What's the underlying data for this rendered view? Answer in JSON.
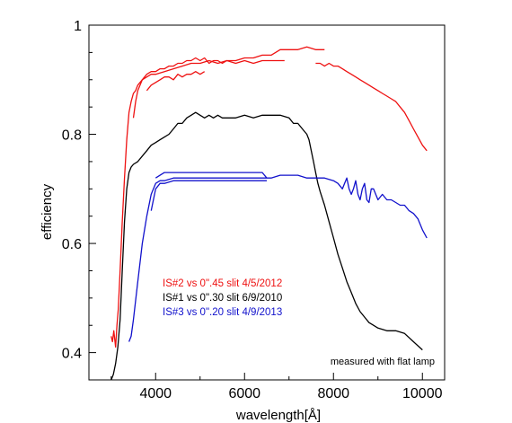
{
  "chart_data": {
    "type": "line",
    "title": "",
    "xlabel": "wavelength[Å]",
    "ylabel": "efficiency",
    "xlim": [
      2500,
      10500
    ],
    "ylim": [
      0.35,
      1.0
    ],
    "xticks": [
      4000,
      6000,
      8000,
      10000
    ],
    "xtick_labels": [
      "4000",
      "6000",
      "8000",
      "10000"
    ],
    "yticks": [
      0.4,
      0.6,
      0.8,
      1.0
    ],
    "ytick_labels": [
      "0.4",
      "0.6",
      "0.8",
      "1"
    ],
    "grid": false,
    "annotation": "measured with flat lamp",
    "legend": [
      {
        "label": "IS#2 vs 0\".45 slit  4/5/2012",
        "color": "#ee1111"
      },
      {
        "label": "IS#1 vs 0\".30 slit  6/9/2010",
        "color": "#000000"
      },
      {
        "label": "IS#3 vs 0\".20 slit  4/9/2013",
        "color": "#1111cc"
      }
    ],
    "series": [
      {
        "name": "IS#2 vs 0\".45 slit  4/5/2012",
        "color": "#ee1111",
        "segments": [
          [
            [
              3000,
              0.43
            ],
            [
              3030,
              0.42
            ],
            [
              3060,
              0.44
            ],
            [
              3100,
              0.41
            ],
            [
              3130,
              0.45
            ],
            [
              3160,
              0.48
            ],
            [
              3200,
              0.55
            ],
            [
              3250,
              0.64
            ],
            [
              3300,
              0.72
            ],
            [
              3350,
              0.79
            ],
            [
              3400,
              0.84
            ],
            [
              3450,
              0.86
            ],
            [
              3500,
              0.875
            ],
            [
              3550,
              0.88
            ],
            [
              3600,
              0.89
            ],
            [
              3700,
              0.9
            ],
            [
              3800,
              0.91
            ],
            [
              3900,
              0.915
            ],
            [
              4000,
              0.915
            ],
            [
              4100,
              0.92
            ],
            [
              4200,
              0.92
            ],
            [
              4300,
              0.925
            ],
            [
              4400,
              0.925
            ],
            [
              4500,
              0.93
            ],
            [
              4600,
              0.93
            ],
            [
              4700,
              0.935
            ],
            [
              4800,
              0.935
            ],
            [
              4900,
              0.94
            ],
            [
              5000,
              0.935
            ],
            [
              5100,
              0.94
            ],
            [
              5200,
              0.93
            ],
            [
              5300,
              0.935
            ],
            [
              5400,
              0.935
            ],
            [
              5500,
              0.93
            ],
            [
              5600,
              0.935
            ],
            [
              5800,
              0.935
            ],
            [
              6000,
              0.94
            ],
            [
              6200,
              0.94
            ],
            [
              6400,
              0.945
            ],
            [
              6600,
              0.945
            ],
            [
              6800,
              0.955
            ],
            [
              7000,
              0.955
            ],
            [
              7200,
              0.955
            ],
            [
              7400,
              0.96
            ],
            [
              7600,
              0.955
            ],
            [
              7800,
              0.955
            ]
          ],
          [
            [
              3500,
              0.83
            ],
            [
              3550,
              0.86
            ],
            [
              3600,
              0.88
            ],
            [
              3700,
              0.9
            ],
            [
              3800,
              0.905
            ],
            [
              3900,
              0.91
            ],
            [
              4000,
              0.91
            ],
            [
              4200,
              0.915
            ],
            [
              4400,
              0.92
            ],
            [
              4600,
              0.925
            ],
            [
              4800,
              0.93
            ],
            [
              5000,
              0.93
            ],
            [
              5200,
              0.935
            ],
            [
              5400,
              0.93
            ],
            [
              5600,
              0.935
            ],
            [
              5800,
              0.93
            ],
            [
              6000,
              0.935
            ],
            [
              6200,
              0.93
            ],
            [
              6400,
              0.935
            ],
            [
              6600,
              0.935
            ],
            [
              6800,
              0.935
            ],
            [
              6900,
              0.935
            ]
          ],
          [
            [
              3800,
              0.88
            ],
            [
              3900,
              0.89
            ],
            [
              4000,
              0.895
            ],
            [
              4100,
              0.9
            ],
            [
              4200,
              0.905
            ],
            [
              4300,
              0.905
            ],
            [
              4400,
              0.9
            ],
            [
              4500,
              0.91
            ],
            [
              4600,
              0.905
            ],
            [
              4700,
              0.91
            ],
            [
              4800,
              0.91
            ],
            [
              4900,
              0.915
            ],
            [
              5000,
              0.91
            ],
            [
              5100,
              0.915
            ]
          ],
          [
            [
              7600,
              0.93
            ],
            [
              7700,
              0.93
            ],
            [
              7800,
              0.925
            ],
            [
              7900,
              0.93
            ],
            [
              8000,
              0.925
            ],
            [
              8100,
              0.925
            ],
            [
              8200,
              0.92
            ],
            [
              8300,
              0.915
            ],
            [
              8400,
              0.91
            ],
            [
              8500,
              0.905
            ],
            [
              8600,
              0.9
            ],
            [
              8700,
              0.895
            ],
            [
              8800,
              0.89
            ],
            [
              8900,
              0.885
            ],
            [
              9000,
              0.88
            ],
            [
              9100,
              0.875
            ],
            [
              9200,
              0.87
            ],
            [
              9300,
              0.865
            ],
            [
              9400,
              0.86
            ],
            [
              9500,
              0.85
            ],
            [
              9600,
              0.84
            ],
            [
              9700,
              0.825
            ],
            [
              9800,
              0.81
            ],
            [
              9900,
              0.795
            ],
            [
              10000,
              0.78
            ],
            [
              10100,
              0.77
            ]
          ]
        ]
      },
      {
        "name": "IS#1 vs 0\".30 slit  6/9/2010",
        "color": "#000000",
        "segments": [
          [
            [
              3000,
              0.35
            ],
            [
              3050,
              0.36
            ],
            [
              3100,
              0.38
            ],
            [
              3150,
              0.41
            ],
            [
              3200,
              0.46
            ],
            [
              3250,
              0.55
            ],
            [
              3300,
              0.64
            ],
            [
              3350,
              0.7
            ],
            [
              3400,
              0.73
            ],
            [
              3450,
              0.74
            ],
            [
              3500,
              0.745
            ],
            [
              3600,
              0.75
            ],
            [
              3700,
              0.76
            ],
            [
              3800,
              0.77
            ],
            [
              3900,
              0.78
            ],
            [
              4000,
              0.785
            ],
            [
              4100,
              0.79
            ],
            [
              4200,
              0.795
            ],
            [
              4300,
              0.8
            ],
            [
              4400,
              0.81
            ],
            [
              4500,
              0.82
            ],
            [
              4600,
              0.82
            ],
            [
              4700,
              0.83
            ],
            [
              4800,
              0.835
            ],
            [
              4900,
              0.84
            ],
            [
              5000,
              0.835
            ],
            [
              5100,
              0.83
            ],
            [
              5200,
              0.835
            ],
            [
              5300,
              0.83
            ],
            [
              5400,
              0.835
            ],
            [
              5500,
              0.83
            ],
            [
              5600,
              0.83
            ],
            [
              5800,
              0.83
            ],
            [
              6000,
              0.835
            ],
            [
              6200,
              0.83
            ],
            [
              6400,
              0.835
            ],
            [
              6600,
              0.835
            ],
            [
              6800,
              0.835
            ],
            [
              7000,
              0.83
            ],
            [
              7100,
              0.82
            ],
            [
              7200,
              0.82
            ],
            [
              7300,
              0.81
            ],
            [
              7400,
              0.8
            ],
            [
              7450,
              0.79
            ],
            [
              7500,
              0.77
            ],
            [
              7550,
              0.75
            ],
            [
              7600,
              0.73
            ],
            [
              7650,
              0.71
            ],
            [
              7700,
              0.695
            ],
            [
              7800,
              0.67
            ],
            [
              7900,
              0.64
            ],
            [
              8000,
              0.61
            ],
            [
              8100,
              0.58
            ],
            [
              8200,
              0.555
            ],
            [
              8300,
              0.53
            ],
            [
              8400,
              0.51
            ],
            [
              8500,
              0.49
            ],
            [
              8600,
              0.475
            ],
            [
              8700,
              0.465
            ],
            [
              8800,
              0.455
            ],
            [
              8900,
              0.45
            ],
            [
              9000,
              0.445
            ],
            [
              9200,
              0.44
            ],
            [
              9400,
              0.44
            ],
            [
              9600,
              0.435
            ],
            [
              9800,
              0.42
            ],
            [
              10000,
              0.405
            ]
          ]
        ]
      },
      {
        "name": "IS#3 vs 0\".20 slit  4/9/2013",
        "color": "#1111cc",
        "segments": [
          [
            [
              3400,
              0.42
            ],
            [
              3450,
              0.43
            ],
            [
              3500,
              0.46
            ],
            [
              3600,
              0.53
            ],
            [
              3700,
              0.6
            ],
            [
              3800,
              0.65
            ],
            [
              3900,
              0.69
            ],
            [
              4000,
              0.71
            ],
            [
              4100,
              0.715
            ],
            [
              4200,
              0.715
            ],
            [
              4400,
              0.72
            ],
            [
              4600,
              0.72
            ],
            [
              4800,
              0.72
            ],
            [
              5000,
              0.72
            ],
            [
              5200,
              0.72
            ],
            [
              5400,
              0.72
            ],
            [
              5600,
              0.72
            ],
            [
              5800,
              0.72
            ],
            [
              6000,
              0.72
            ],
            [
              6200,
              0.72
            ],
            [
              6400,
              0.72
            ],
            [
              6600,
              0.72
            ],
            [
              6800,
              0.725
            ],
            [
              7000,
              0.725
            ],
            [
              7200,
              0.725
            ],
            [
              7400,
              0.72
            ],
            [
              7600,
              0.72
            ],
            [
              7800,
              0.72
            ],
            [
              8000,
              0.715
            ],
            [
              8100,
              0.71
            ],
            [
              8200,
              0.7
            ],
            [
              8250,
              0.71
            ],
            [
              8300,
              0.72
            ],
            [
              8350,
              0.7
            ],
            [
              8400,
              0.69
            ],
            [
              8450,
              0.7
            ],
            [
              8500,
              0.715
            ],
            [
              8550,
              0.69
            ],
            [
              8600,
              0.68
            ],
            [
              8650,
              0.7
            ],
            [
              8700,
              0.71
            ],
            [
              8750,
              0.68
            ],
            [
              8800,
              0.675
            ],
            [
              8850,
              0.7
            ],
            [
              8900,
              0.7
            ],
            [
              9000,
              0.68
            ],
            [
              9100,
              0.69
            ],
            [
              9200,
              0.68
            ],
            [
              9300,
              0.68
            ],
            [
              9400,
              0.675
            ],
            [
              9500,
              0.67
            ],
            [
              9600,
              0.67
            ],
            [
              9700,
              0.66
            ],
            [
              9800,
              0.655
            ],
            [
              9900,
              0.645
            ],
            [
              10000,
              0.625
            ],
            [
              10100,
              0.61
            ]
          ],
          [
            [
              4000,
              0.72
            ],
            [
              4100,
              0.725
            ],
            [
              4200,
              0.73
            ],
            [
              4400,
              0.73
            ],
            [
              4600,
              0.73
            ],
            [
              4800,
              0.73
            ],
            [
              5000,
              0.73
            ],
            [
              5200,
              0.73
            ],
            [
              5400,
              0.73
            ],
            [
              5600,
              0.73
            ],
            [
              5800,
              0.73
            ],
            [
              6000,
              0.73
            ],
            [
              6200,
              0.73
            ],
            [
              6400,
              0.73
            ],
            [
              6500,
              0.72
            ]
          ],
          [
            [
              3900,
              0.66
            ],
            [
              4000,
              0.7
            ],
            [
              4100,
              0.71
            ],
            [
              4200,
              0.71
            ],
            [
              4400,
              0.715
            ],
            [
              4600,
              0.715
            ],
            [
              4800,
              0.715
            ],
            [
              5000,
              0.715
            ],
            [
              5200,
              0.715
            ],
            [
              5400,
              0.715
            ],
            [
              5600,
              0.715
            ],
            [
              5800,
              0.715
            ],
            [
              6000,
              0.715
            ],
            [
              6200,
              0.715
            ],
            [
              6400,
              0.715
            ],
            [
              6500,
              0.715
            ]
          ]
        ]
      }
    ]
  }
}
